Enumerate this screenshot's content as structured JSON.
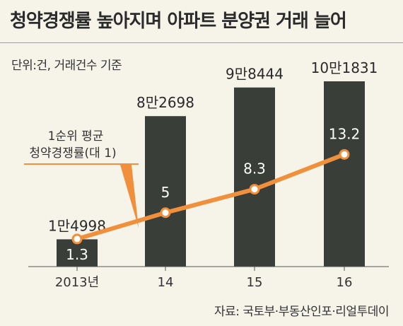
{
  "header": {
    "title": "청약경쟁률 높아지며 아파트 분양권 거래 늘어",
    "unit": "단위:건, 거래건수 기준"
  },
  "source": "자료: 국토부·부동산인포·리얼투데이",
  "colors": {
    "bar": "#393e38",
    "line": "#f0903c",
    "background": "#f6f3e9"
  },
  "chart_data": {
    "type": "bar",
    "categories": [
      "2013년",
      "14",
      "15",
      "16"
    ],
    "series": [
      {
        "type": "bar",
        "values": [
          14998,
          82698,
          98444,
          101831
        ],
        "data_labels": [
          "1만4998",
          "8만2698",
          "9만8444",
          "10만1831"
        ]
      },
      {
        "name": "1순위 평균 청약경쟁률(대 1)",
        "type": "line",
        "values": [
          1.3,
          5,
          8.3,
          13.2
        ],
        "data_labels": [
          "1.3",
          "5",
          "8.3",
          "13.2"
        ]
      }
    ],
    "legend": {
      "lines": [
        "1순위 평균",
        "청약경쟁률(대 1)"
      ],
      "placement": "upper-left"
    },
    "ylim": [
      0,
      110000
    ],
    "ylim_line": [
      0,
      20
    ]
  }
}
